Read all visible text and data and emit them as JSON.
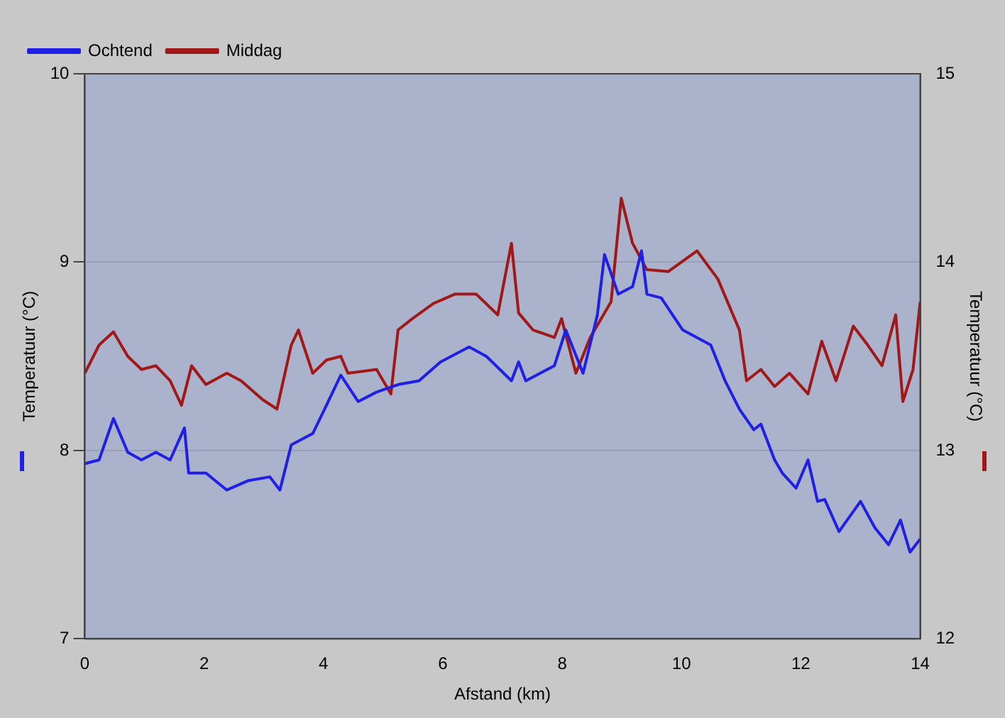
{
  "chart_data": {
    "type": "line",
    "xlabel": "Afstand (km)",
    "ylabel": "Temperatuur (°C)",
    "y2label": "Temperatuur (°C)",
    "xlim": [
      0,
      14
    ],
    "xticks": [
      0,
      2,
      4,
      6,
      8,
      10,
      12,
      14
    ],
    "ylim": [
      7,
      10
    ],
    "yticks": [
      7,
      8,
      9,
      10
    ],
    "y2lim": [
      12,
      15
    ],
    "y2ticks": [
      12,
      13,
      14,
      15
    ],
    "grid": "y",
    "legend": "top left",
    "marker": "none",
    "line_style": "solid",
    "series": [
      {
        "name": "Ochtend",
        "color": "#1f1fe6",
        "axis": "y",
        "x": [
          0,
          0.24,
          0.48,
          0.72,
          0.95,
          1.19,
          1.43,
          1.67,
          1.74,
          2.03,
          2.38,
          2.74,
          3.1,
          3.27,
          3.46,
          3.82,
          4.05,
          4.29,
          4.58,
          4.89,
          5.25,
          5.6,
          5.96,
          6.44,
          6.73,
          7.15,
          7.27,
          7.39,
          7.87,
          8.06,
          8.35,
          8.59,
          8.71,
          8.94,
          9.18,
          9.33,
          9.42,
          9.66,
          10.02,
          10.49,
          10.73,
          10.97,
          11.21,
          11.33,
          11.56,
          11.69,
          11.92,
          12.12,
          12.28,
          12.4,
          12.64,
          13,
          13.24,
          13.47,
          13.67,
          13.83,
          14
        ],
        "values": [
          7.93,
          7.95,
          8.17,
          7.99,
          7.95,
          7.99,
          7.95,
          8.12,
          7.88,
          7.88,
          7.79,
          7.84,
          7.86,
          7.79,
          8.03,
          8.09,
          8.24,
          8.4,
          8.26,
          8.31,
          8.35,
          8.37,
          8.47,
          8.55,
          8.5,
          8.37,
          8.47,
          8.37,
          8.45,
          8.64,
          8.41,
          8.72,
          9.04,
          8.83,
          8.87,
          9.06,
          8.83,
          8.81,
          8.64,
          8.56,
          8.37,
          8.22,
          8.11,
          8.14,
          7.95,
          7.88,
          7.8,
          7.95,
          7.73,
          7.74,
          7.57,
          7.73,
          7.59,
          7.5,
          7.63,
          7.46,
          7.53
        ]
      },
      {
        "name": "Middag",
        "color": "#a01818",
        "axis": "y2",
        "x": [
          0,
          0.24,
          0.48,
          0.72,
          0.95,
          1.19,
          1.43,
          1.62,
          1.79,
          2.03,
          2.38,
          2.62,
          2.98,
          3.22,
          3.46,
          3.58,
          3.82,
          4.05,
          4.29,
          4.41,
          4.89,
          5.13,
          5.25,
          5.49,
          5.84,
          6.2,
          6.56,
          6.92,
          7.15,
          7.27,
          7.51,
          7.87,
          7.99,
          8.23,
          8.47,
          8.82,
          8.99,
          9.18,
          9.42,
          9.78,
          10.26,
          10.61,
          10.97,
          11.09,
          11.33,
          11.56,
          11.81,
          12.12,
          12.35,
          12.59,
          12.88,
          13.12,
          13.36,
          13.59,
          13.71,
          13.88,
          14
        ],
        "values": [
          13.41,
          13.56,
          13.63,
          13.5,
          13.43,
          13.45,
          13.37,
          13.24,
          13.45,
          13.35,
          13.41,
          13.37,
          13.27,
          13.22,
          13.56,
          13.64,
          13.41,
          13.48,
          13.5,
          13.41,
          13.43,
          13.3,
          13.64,
          13.7,
          13.78,
          13.83,
          13.83,
          13.72,
          14.1,
          13.73,
          13.64,
          13.6,
          13.7,
          13.41,
          13.6,
          13.79,
          14.34,
          14.1,
          13.96,
          13.95,
          14.06,
          13.91,
          13.64,
          13.37,
          13.43,
          13.34,
          13.41,
          13.3,
          13.58,
          13.37,
          13.66,
          13.56,
          13.45,
          13.72,
          13.26,
          13.43,
          13.79
        ]
      }
    ]
  }
}
